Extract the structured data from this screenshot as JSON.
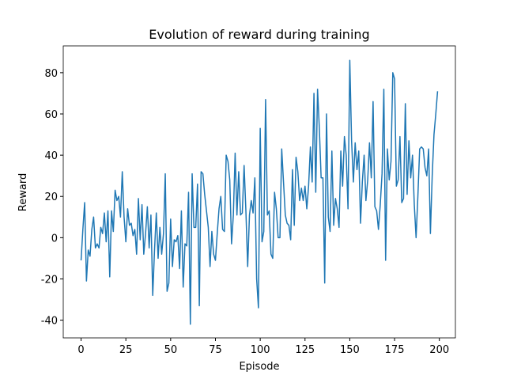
{
  "chart_data": {
    "type": "line",
    "title": "Evolution of reward during training",
    "x_label": "Episode",
    "y_label": "Reward",
    "color": "#1f77b4",
    "x": [
      0,
      1,
      2,
      3,
      4,
      5,
      6,
      7,
      8,
      9,
      10,
      11,
      12,
      13,
      14,
      15,
      16,
      17,
      18,
      19,
      20,
      21,
      22,
      23,
      24,
      25,
      26,
      27,
      28,
      29,
      30,
      31,
      32,
      33,
      34,
      35,
      36,
      37,
      38,
      39,
      40,
      41,
      42,
      43,
      44,
      45,
      46,
      47,
      48,
      49,
      50,
      51,
      52,
      53,
      54,
      55,
      56,
      57,
      58,
      59,
      60,
      61,
      62,
      63,
      64,
      65,
      66,
      67,
      68,
      69,
      70,
      71,
      72,
      73,
      74,
      75,
      76,
      77,
      78,
      79,
      80,
      81,
      82,
      83,
      84,
      85,
      86,
      87,
      88,
      89,
      90,
      91,
      92,
      93,
      94,
      95,
      96,
      97,
      98,
      99,
      100,
      101,
      102,
      103,
      104,
      105,
      106,
      107,
      108,
      109,
      110,
      111,
      112,
      113,
      114,
      115,
      116,
      117,
      118,
      119,
      120,
      121,
      122,
      123,
      124,
      125,
      126,
      127,
      128,
      129,
      130,
      131,
      132,
      133,
      134,
      135,
      136,
      137,
      138,
      139,
      140,
      141,
      142,
      143,
      144,
      145,
      146,
      147,
      148,
      149,
      150,
      151,
      152,
      153,
      154,
      155,
      156,
      157,
      158,
      159,
      160,
      161,
      162,
      163,
      164,
      165,
      166,
      167,
      168,
      169,
      170,
      171,
      172,
      173,
      174,
      175,
      176,
      177,
      178,
      179,
      180,
      181,
      182,
      183,
      184,
      185,
      186,
      187,
      188,
      189,
      190,
      191,
      192,
      193,
      194,
      195,
      196,
      197,
      198,
      199
    ],
    "values": [
      -11,
      4,
      17,
      -21,
      -6,
      -9,
      4,
      10,
      -5,
      -3,
      -5,
      5,
      2,
      12,
      -2,
      13,
      -19,
      13,
      3,
      23,
      18,
      20,
      10,
      32,
      10,
      -2,
      14,
      6,
      7,
      1,
      4,
      -8,
      19,
      -1,
      16,
      -8,
      2,
      15,
      -5,
      11,
      -28,
      -6,
      12,
      -10,
      5,
      -8,
      2,
      31,
      -26,
      -22,
      9,
      -14,
      -1,
      -2,
      1,
      -15,
      13,
      -24,
      -3,
      -4,
      22,
      -42,
      31,
      5,
      5,
      26,
      -33,
      32,
      31,
      21,
      13,
      5,
      -14,
      3,
      -8,
      -11,
      2,
      14,
      20,
      4,
      3,
      40,
      37,
      28,
      -3,
      11,
      41,
      11,
      32,
      11,
      12,
      35,
      13,
      -14,
      11,
      18,
      12,
      29,
      -20,
      -34,
      53,
      -2,
      3,
      67,
      11,
      13,
      -8,
      -10,
      22,
      14,
      0,
      0,
      43,
      27,
      11,
      7,
      6,
      -1,
      33,
      6,
      39,
      32,
      18,
      24,
      18,
      25,
      14,
      25,
      44,
      27,
      70,
      22,
      72,
      53,
      29,
      29,
      -22,
      60,
      10,
      3,
      42,
      6,
      19,
      14,
      5,
      42,
      25,
      49,
      40,
      14,
      86,
      47,
      27,
      46,
      33,
      42,
      7,
      27,
      40,
      18,
      28,
      46,
      29,
      66,
      15,
      13,
      4,
      16,
      31,
      72,
      -11,
      43,
      28,
      37,
      80,
      77,
      25,
      28,
      49,
      17,
      19,
      65,
      21,
      47,
      29,
      40,
      16,
      0,
      20,
      43,
      44,
      43,
      34,
      30,
      43,
      2,
      30,
      50,
      60,
      71
    ],
    "xlim": [
      -9.95,
      208.95
    ],
    "ylim": [
      -48.6,
      93.0
    ],
    "xticks": [
      0,
      25,
      50,
      75,
      100,
      125,
      150,
      175,
      200
    ],
    "yticks": [
      -40,
      -20,
      0,
      20,
      40,
      60,
      80
    ]
  }
}
